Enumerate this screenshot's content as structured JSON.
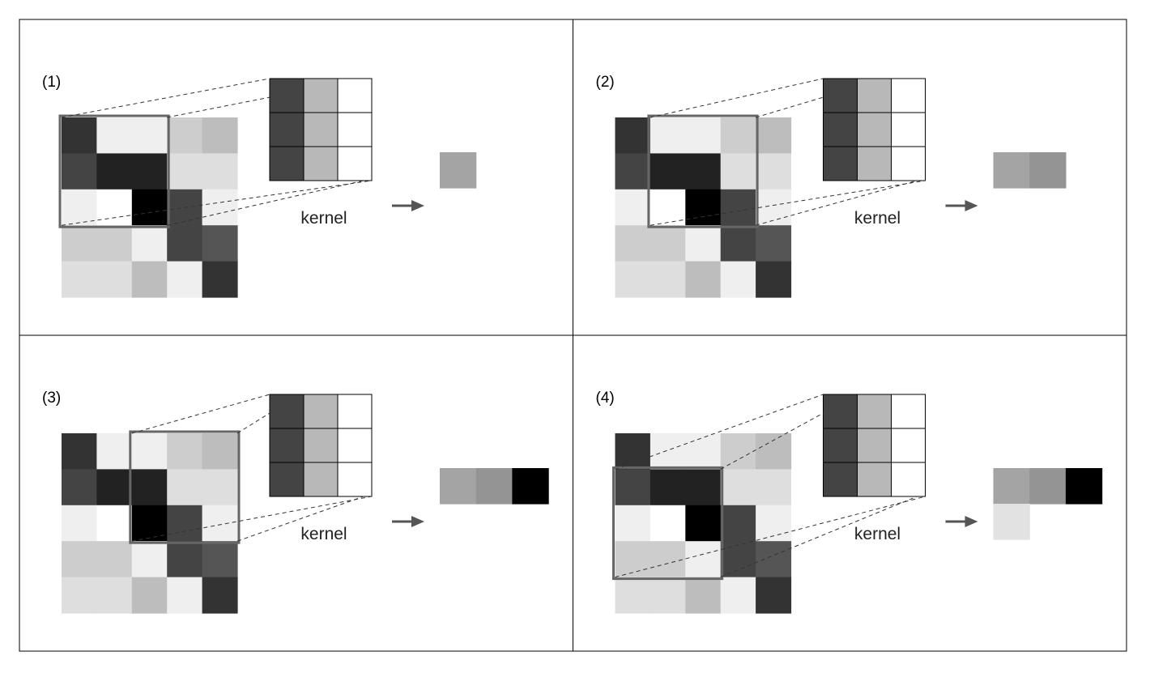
{
  "input_image": [
    [
      "#333333",
      "#efefef",
      "#efefef",
      "#cdcdcd",
      "#bdbdbd"
    ],
    [
      "#444444",
      "#222222",
      "#222222",
      "#dedede",
      "#dedede"
    ],
    [
      "#efefef",
      "#ffffff",
      "#000000",
      "#444444",
      "#efefef"
    ],
    [
      "#cdcdcd",
      "#cdcdcd",
      "#efefef",
      "#444444",
      "#555555"
    ],
    [
      "#dedede",
      "#dedede",
      "#bdbdbd",
      "#efefef",
      "#333333"
    ]
  ],
  "kernel": {
    "label": "kernel",
    "cells": [
      [
        "#444444",
        "#b8b8b8",
        "#ffffff"
      ],
      [
        "#444444",
        "#b8b8b8",
        "#ffffff"
      ],
      [
        "#444444",
        "#b8b8b8",
        "#ffffff"
      ]
    ]
  },
  "colors": {
    "window_stroke": "#666666",
    "grid_line": "#000000",
    "arrow": "#555555",
    "guide_line": "#333333"
  },
  "panels": [
    {
      "label": "(1)",
      "window": {
        "row": 0,
        "col": 0
      },
      "output": [
        [
          "#a4a4a4"
        ]
      ]
    },
    {
      "label": "(2)",
      "window": {
        "row": 0,
        "col": 1
      },
      "output": [
        [
          "#a4a4a4",
          "#949494"
        ]
      ]
    },
    {
      "label": "(3)",
      "window": {
        "row": 0,
        "col": 2
      },
      "output": [
        [
          "#a4a4a4",
          "#949494",
          "#000000"
        ]
      ]
    },
    {
      "label": "(4)",
      "window": {
        "row": 1,
        "col": 0
      },
      "output": [
        [
          "#a4a4a4",
          "#949494",
          "#000000"
        ],
        [
          "#e2e2e2",
          null,
          null
        ]
      ]
    }
  ]
}
